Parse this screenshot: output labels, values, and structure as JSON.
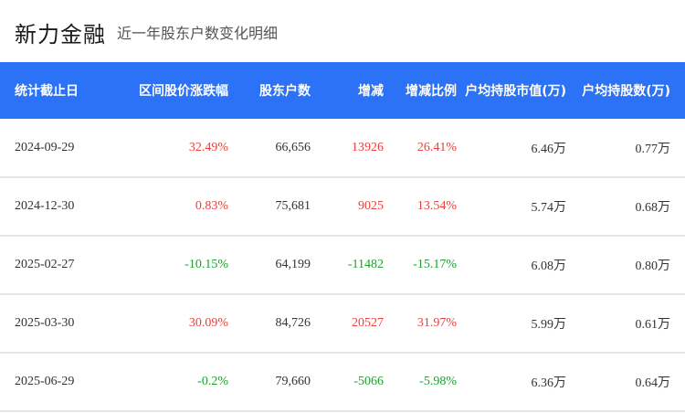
{
  "header": {
    "title": "新力金融",
    "subtitle": "近一年股东户数变化明细"
  },
  "colors": {
    "header_bg": "#2b72f6",
    "up": "#e8413c",
    "down": "#1aa22c"
  },
  "table": {
    "columns": [
      "统计截止日",
      "区间股价涨跌幅",
      "股东户数",
      "增减",
      "增减比例",
      "户均持股市值(万)",
      "户均持股数(万)"
    ],
    "rows": [
      {
        "date": "2024-09-29",
        "change_pct": "32.49%",
        "holders": "66,656",
        "delta": "13926",
        "delta_pct": "26.41%",
        "avg_value": "6.46万",
        "avg_shares": "0.77万",
        "trend": "up"
      },
      {
        "date": "2024-12-30",
        "change_pct": "0.83%",
        "holders": "75,681",
        "delta": "9025",
        "delta_pct": "13.54%",
        "avg_value": "5.74万",
        "avg_shares": "0.68万",
        "trend": "up"
      },
      {
        "date": "2025-02-27",
        "change_pct": "-10.15%",
        "holders": "64,199",
        "delta": "-11482",
        "delta_pct": "-15.17%",
        "avg_value": "6.08万",
        "avg_shares": "0.80万",
        "trend": "down"
      },
      {
        "date": "2025-03-30",
        "change_pct": "30.09%",
        "holders": "84,726",
        "delta": "20527",
        "delta_pct": "31.97%",
        "avg_value": "5.99万",
        "avg_shares": "0.61万",
        "trend": "up"
      },
      {
        "date": "2025-06-29",
        "change_pct": "-0.2%",
        "holders": "79,660",
        "delta": "-5066",
        "delta_pct": "-5.98%",
        "avg_value": "6.36万",
        "avg_shares": "0.64万",
        "trend": "down"
      }
    ]
  }
}
